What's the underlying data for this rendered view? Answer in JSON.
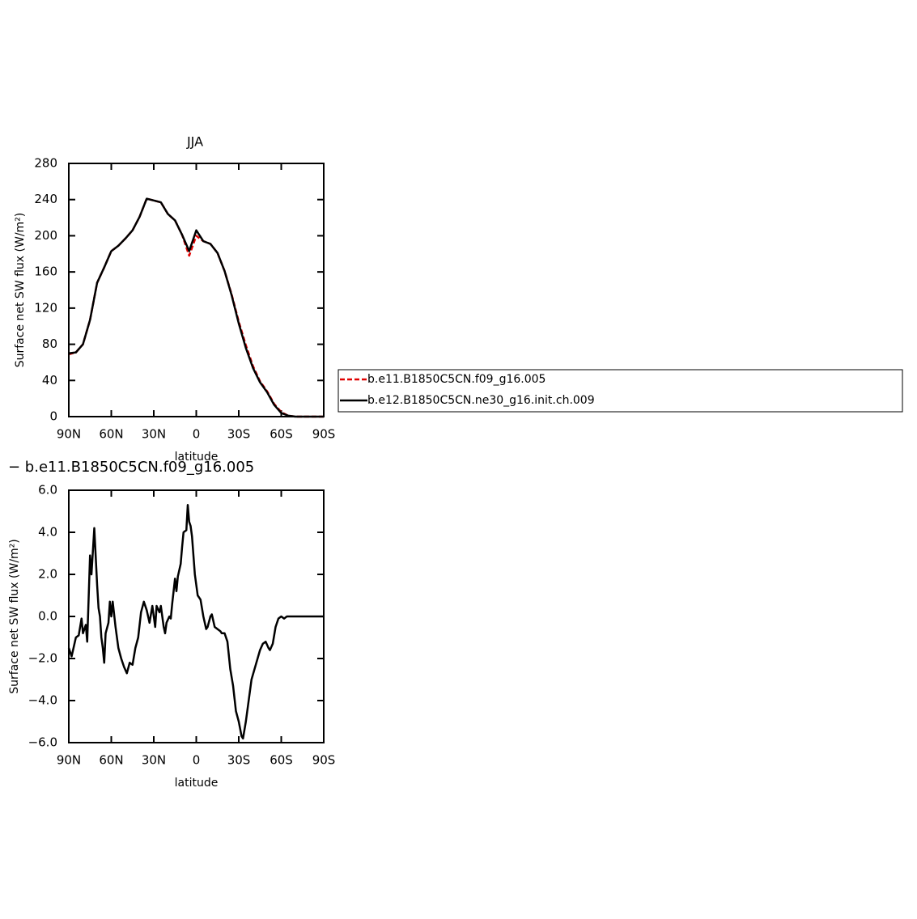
{
  "chart_data": [
    {
      "type": "line",
      "title": "JJA",
      "xlabel": "latitude",
      "ylabel": "Surface net SW flux (W/m²)",
      "x": [
        90,
        85,
        80,
        75,
        70,
        65,
        60,
        55,
        50,
        45,
        40,
        35,
        30,
        25,
        20,
        15,
        10,
        5,
        0,
        -5,
        -10,
        -15,
        -20,
        -25,
        -30,
        -35,
        -40,
        -45,
        -50,
        -55,
        -60,
        -65,
        -70,
        -75,
        -80,
        -85,
        -90
      ],
      "series": [
        {
          "name": "b.e11.B1850C5CN.f09_g16.005",
          "color": "#e00000",
          "dash": "dashed",
          "values": [
            69,
            71,
            80,
            107,
            148,
            165,
            183,
            189,
            197,
            206,
            221,
            241,
            239,
            237,
            224,
            217,
            201,
            178,
            200,
            194,
            191,
            181,
            161,
            135,
            105,
            79,
            56,
            39,
            28,
            14,
            5,
            1,
            0,
            0,
            0,
            0,
            0
          ]
        },
        {
          "name": "b.e12.B1850C5CN.ne30_g16.init.ch.009",
          "color": "#000000",
          "dash": "solid",
          "values": [
            70,
            71,
            80,
            107,
            148,
            165,
            183,
            189,
            197,
            206,
            221,
            241,
            239,
            237,
            224,
            217,
            201,
            183,
            206,
            194,
            191,
            181,
            161,
            134,
            103,
            76,
            54,
            38,
            27,
            13,
            4,
            1,
            0,
            0,
            0,
            0,
            0
          ]
        }
      ],
      "xlim": [
        90,
        -90
      ],
      "xticks": [
        {
          "value": 90,
          "label": "90N"
        },
        {
          "value": 60,
          "label": "60N"
        },
        {
          "value": 30,
          "label": "30N"
        },
        0,
        {
          "value": -30,
          "label": "30S"
        },
        {
          "value": -60,
          "label": "60S"
        },
        {
          "value": -90,
          "label": "90S"
        }
      ],
      "ylim": [
        0,
        280
      ],
      "yticks": [
        0,
        40,
        80,
        120,
        160,
        200,
        240,
        280
      ]
    },
    {
      "type": "line",
      "title": "− b.e11.B1850C5CN.f09_g16.005",
      "xlabel": "latitude",
      "ylabel": "Surface net SW flux (W/m²)",
      "x": [
        90,
        88,
        85,
        83,
        81,
        80,
        78,
        77,
        75,
        74,
        72,
        70,
        69,
        68,
        67,
        66,
        65,
        64,
        62,
        61,
        60,
        59,
        57,
        55,
        53,
        51,
        49,
        47,
        45,
        43,
        41,
        39,
        37,
        35,
        33,
        31,
        29,
        28,
        26,
        25,
        23,
        22,
        21,
        19,
        18,
        17,
        15,
        14,
        13,
        11,
        10,
        9,
        7,
        6,
        5,
        4,
        3,
        1,
        -1,
        -3,
        -5,
        -7,
        -8,
        -10,
        -11,
        -13,
        -15,
        -17,
        -18,
        -20,
        -22,
        -24,
        -26,
        -28,
        -30,
        -32,
        -33,
        -35,
        -37,
        -39,
        -42,
        -45,
        -47,
        -49,
        -51,
        -52,
        -54,
        -56,
        -58,
        -60,
        -62,
        -64,
        -90
      ],
      "series": [
        {
          "color": "#000000",
          "values": [
            -1.5,
            -1.9,
            -1.0,
            -0.9,
            -0.1,
            -0.8,
            -0.4,
            -1.2,
            2.9,
            2.0,
            4.2,
            1.5,
            0.4,
            0.0,
            -1.0,
            -1.5,
            -2.2,
            -0.8,
            -0.3,
            0.7,
            0.0,
            0.7,
            -0.5,
            -1.5,
            -2.0,
            -2.4,
            -2.7,
            -2.2,
            -2.3,
            -1.5,
            -1.0,
            0.2,
            0.7,
            0.3,
            -0.3,
            0.5,
            -0.5,
            0.5,
            0.2,
            0.5,
            -0.5,
            -0.8,
            -0.3,
            0.0,
            -0.1,
            0.6,
            1.8,
            1.2,
            1.9,
            2.5,
            3.3,
            4.0,
            4.1,
            5.3,
            4.5,
            4.3,
            3.8,
            2.0,
            1.0,
            0.8,
            0.0,
            -0.6,
            -0.5,
            0.0,
            0.1,
            -0.5,
            -0.6,
            -0.7,
            -0.8,
            -0.8,
            -1.2,
            -2.5,
            -3.3,
            -4.5,
            -5.0,
            -5.7,
            -5.8,
            -5.0,
            -4.0,
            -3.0,
            -2.3,
            -1.6,
            -1.3,
            -1.2,
            -1.5,
            -1.6,
            -1.3,
            -0.5,
            -0.1,
            0.0,
            -0.1,
            0.0,
            0.0
          ]
        }
      ],
      "xlim": [
        90,
        -90
      ],
      "xticks": [
        {
          "value": 90,
          "label": "90N"
        },
        {
          "value": 60,
          "label": "60N"
        },
        {
          "value": 30,
          "label": "30N"
        },
        0,
        {
          "value": -30,
          "label": "30S"
        },
        {
          "value": -60,
          "label": "60S"
        },
        {
          "value": -90,
          "label": "90S"
        }
      ],
      "ylim": [
        -6,
        6
      ],
      "yticks": [
        {
          "value": -6,
          "label": "−6.0"
        },
        {
          "value": -4,
          "label": "−4.0"
        },
        {
          "value": -2,
          "label": "−2.0"
        },
        {
          "value": 0,
          "label": "0.0"
        },
        {
          "value": 2,
          "label": "2.0"
        },
        {
          "value": 4,
          "label": "4.0"
        },
        {
          "value": 6,
          "label": "6.0"
        }
      ]
    }
  ]
}
